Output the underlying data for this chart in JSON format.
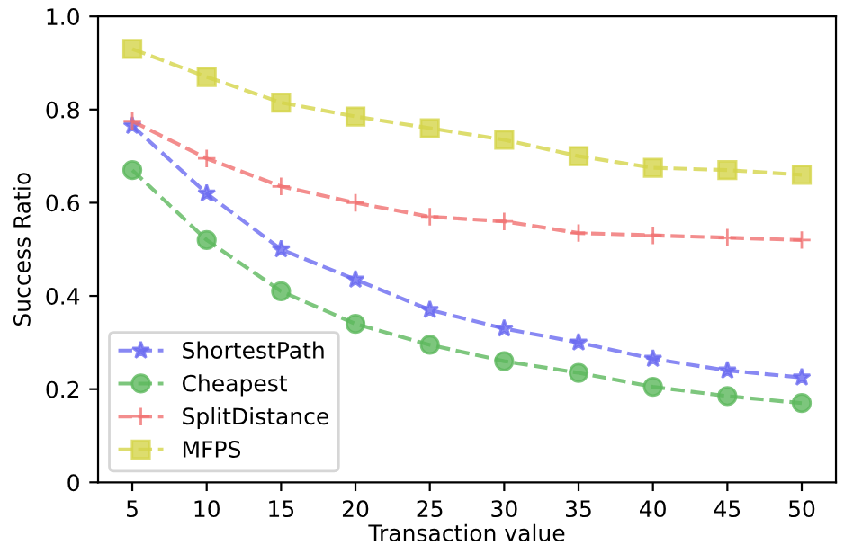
{
  "chart_data": {
    "type": "line",
    "xlabel": "Transaction value",
    "ylabel": "Success Ratio",
    "x": [
      5,
      10,
      15,
      20,
      25,
      30,
      35,
      40,
      45,
      50
    ],
    "series": [
      {
        "name": "ShortestPath",
        "color": "#6a6af0",
        "marker": "star",
        "values": [
          0.765,
          0.62,
          0.5,
          0.435,
          0.37,
          0.33,
          0.3,
          0.265,
          0.24,
          0.225
        ]
      },
      {
        "name": "Cheapest",
        "color": "#5cb85c",
        "marker": "circle",
        "values": [
          0.67,
          0.52,
          0.41,
          0.34,
          0.295,
          0.26,
          0.235,
          0.205,
          0.185,
          0.17
        ]
      },
      {
        "name": "SplitDistance",
        "color": "#f07070",
        "marker": "cross",
        "values": [
          0.775,
          0.695,
          0.635,
          0.6,
          0.57,
          0.56,
          0.535,
          0.53,
          0.525,
          0.52
        ]
      },
      {
        "name": "MFPS",
        "color": "#d4d44a",
        "marker": "square",
        "values": [
          0.93,
          0.87,
          0.815,
          0.785,
          0.76,
          0.735,
          0.7,
          0.675,
          0.67,
          0.66
        ]
      }
    ],
    "xlim": [
      2.7,
      52.3
    ],
    "xticks": [
      5,
      10,
      15,
      20,
      25,
      30,
      35,
      40,
      45,
      50
    ],
    "ylim": [
      0,
      1
    ],
    "yticks": [
      0,
      0.2,
      0.4,
      0.6,
      0.8,
      {
        "value": 1,
        "label": "1.0"
      }
    ],
    "line_style": "dashed",
    "legend": "bottom left",
    "grid": false
  }
}
